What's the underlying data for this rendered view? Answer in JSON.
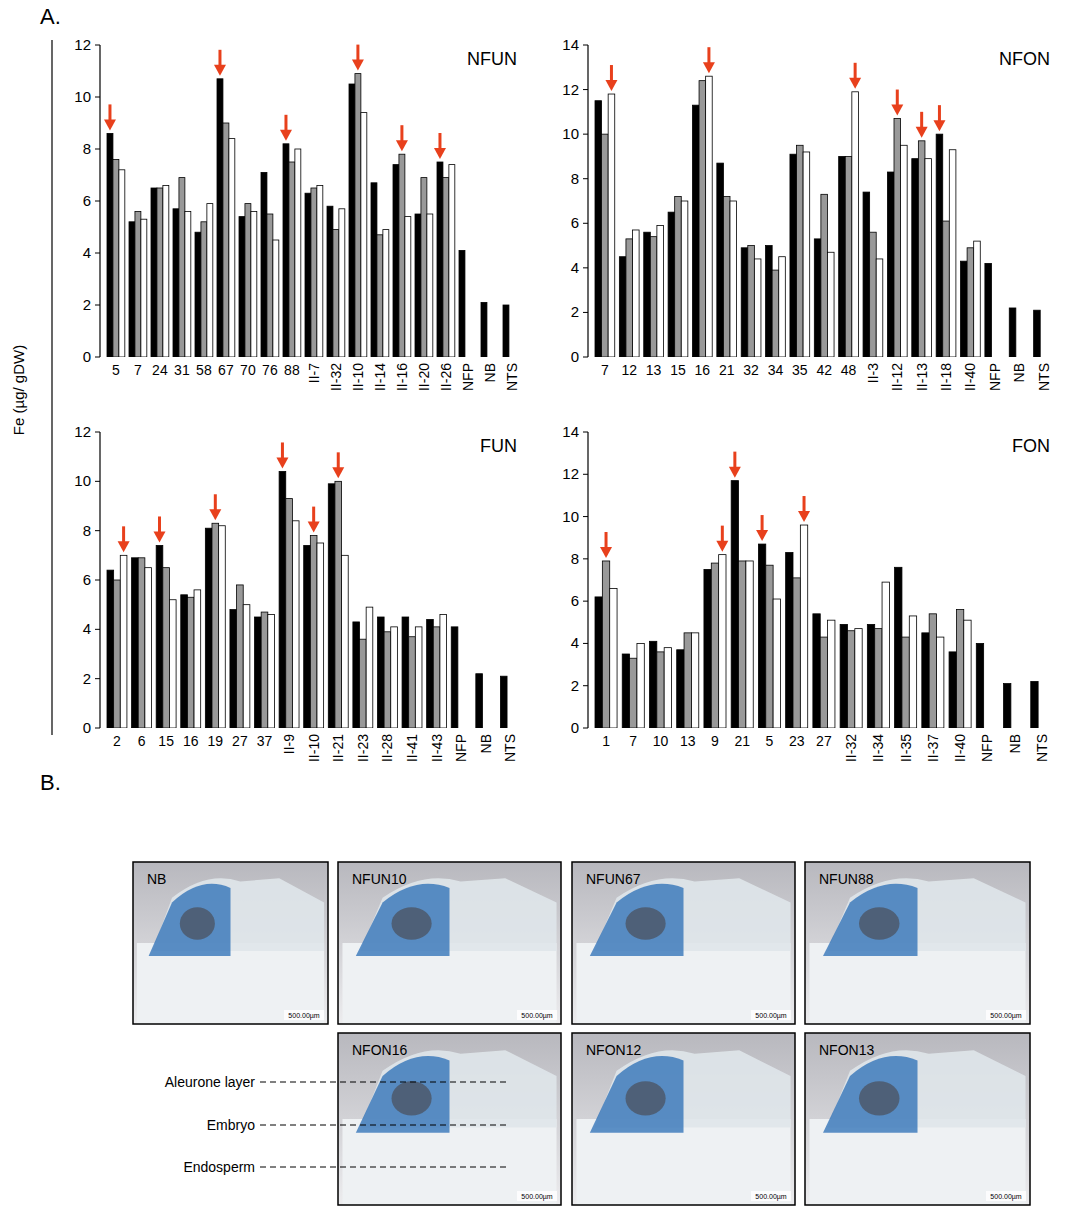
{
  "chart_data": [
    {
      "type": "bar",
      "title": "NFUN",
      "ylim": [
        0,
        12
      ],
      "yticks": [
        0,
        2,
        4,
        6,
        8,
        10,
        12
      ],
      "categories": [
        "5",
        "7",
        "24",
        "31",
        "58",
        "67",
        "70",
        "76",
        "88",
        "II-7",
        "II-32",
        "II-10",
        "II-14",
        "II-16",
        "II-20",
        "II-26",
        "NFP",
        "NB",
        "NTS"
      ],
      "series": [
        {
          "color": "#000000",
          "values": [
            8.6,
            5.2,
            6.5,
            5.7,
            4.8,
            10.7,
            5.4,
            7.1,
            8.2,
            6.3,
            5.8,
            10.5,
            6.7,
            7.4,
            5.5,
            7.5,
            4.1,
            2.1,
            2.0
          ]
        },
        {
          "color": "#999999",
          "values": [
            7.6,
            5.6,
            6.5,
            6.9,
            5.2,
            9.0,
            5.9,
            5.5,
            7.5,
            6.5,
            4.9,
            10.9,
            4.7,
            7.8,
            6.9,
            6.9,
            null,
            null,
            null
          ]
        },
        {
          "color": "#ffffff",
          "values": [
            7.2,
            5.3,
            6.6,
            5.6,
            5.9,
            8.4,
            5.6,
            4.5,
            8.0,
            6.6,
            5.7,
            9.4,
            4.9,
            5.4,
            5.5,
            7.4,
            null,
            null,
            null
          ]
        }
      ],
      "arrows": [
        "5",
        "67",
        "88",
        "II-10",
        "II-16",
        "II-26"
      ]
    },
    {
      "type": "bar",
      "title": "NFON",
      "ylim": [
        0,
        14
      ],
      "yticks": [
        0,
        2,
        4,
        6,
        8,
        10,
        12,
        14
      ],
      "categories": [
        "7",
        "12",
        "13",
        "15",
        "16",
        "21",
        "32",
        "34",
        "35",
        "42",
        "48",
        "II-3",
        "II-12",
        "II-13",
        "II-18",
        "II-40",
        "NFP",
        "NB",
        "NTS"
      ],
      "series": [
        {
          "color": "#000000",
          "values": [
            11.5,
            4.5,
            5.6,
            6.5,
            11.3,
            8.7,
            4.9,
            5.0,
            9.1,
            5.3,
            9.0,
            7.4,
            8.3,
            8.9,
            10.0,
            4.3,
            4.2,
            2.2,
            2.1
          ]
        },
        {
          "color": "#999999",
          "values": [
            10.0,
            5.3,
            5.4,
            7.2,
            12.4,
            7.2,
            5.0,
            3.9,
            9.5,
            7.3,
            9.0,
            5.6,
            10.7,
            9.7,
            6.1,
            4.9,
            null,
            null,
            null
          ]
        },
        {
          "color": "#ffffff",
          "values": [
            11.8,
            5.7,
            5.9,
            7.0,
            12.6,
            7.0,
            4.4,
            4.5,
            9.2,
            4.7,
            11.9,
            4.4,
            9.5,
            8.9,
            9.3,
            5.2,
            null,
            null,
            null
          ]
        }
      ],
      "arrows": [
        "7",
        "16",
        "48",
        "II-12",
        "II-13",
        "II-18"
      ]
    },
    {
      "type": "bar",
      "title": "FUN",
      "ylim": [
        0,
        12
      ],
      "yticks": [
        0,
        2,
        4,
        6,
        8,
        10,
        12
      ],
      "categories": [
        "2",
        "6",
        "15",
        "16",
        "19",
        "27",
        "37",
        "II-9",
        "II-10",
        "II-21",
        "II-23",
        "II-28",
        "II-41",
        "II-43",
        "NFP",
        "NB",
        "NTS"
      ],
      "series": [
        {
          "color": "#000000",
          "values": [
            6.4,
            6.9,
            7.4,
            5.4,
            8.1,
            4.8,
            4.5,
            10.4,
            7.4,
            9.9,
            4.3,
            4.5,
            4.5,
            4.4,
            4.1,
            2.2,
            2.1
          ]
        },
        {
          "color": "#999999",
          "values": [
            6.0,
            6.9,
            6.5,
            5.3,
            8.3,
            5.8,
            4.7,
            9.3,
            7.8,
            10.0,
            3.6,
            3.9,
            3.7,
            4.1,
            null,
            null,
            null
          ]
        },
        {
          "color": "#ffffff",
          "values": [
            7.0,
            6.5,
            5.2,
            5.6,
            8.2,
            5.0,
            4.6,
            8.4,
            7.5,
            7.0,
            4.9,
            4.1,
            4.1,
            4.6,
            null,
            null,
            null
          ]
        }
      ],
      "arrows": [
        "2",
        "15",
        "19",
        "II-9",
        "II-10",
        "II-21"
      ]
    },
    {
      "type": "bar",
      "title": "FON",
      "ylim": [
        0,
        14
      ],
      "yticks": [
        0,
        2,
        4,
        6,
        8,
        10,
        12,
        14
      ],
      "categories": [
        "1",
        "7",
        "10",
        "13",
        "9",
        "21",
        "5",
        "23",
        "27",
        "II-32",
        "II-34",
        "II-35",
        "II-37",
        "II-40",
        "NFP",
        "NB",
        "NTS"
      ],
      "series": [
        {
          "color": "#000000",
          "values": [
            6.2,
            3.5,
            4.1,
            3.7,
            7.5,
            11.7,
            8.7,
            8.3,
            5.4,
            4.9,
            4.9,
            7.6,
            4.5,
            3.6,
            4.0,
            2.1,
            2.2
          ]
        },
        {
          "color": "#999999",
          "values": [
            7.9,
            3.3,
            3.6,
            4.5,
            7.8,
            7.9,
            7.7,
            7.1,
            4.3,
            4.6,
            4.7,
            4.3,
            5.4,
            5.6,
            null,
            null,
            null
          ]
        },
        {
          "color": "#ffffff",
          "values": [
            6.6,
            4.0,
            3.8,
            4.5,
            8.2,
            7.9,
            6.1,
            9.6,
            5.1,
            4.7,
            6.9,
            5.3,
            4.3,
            5.1,
            null,
            null,
            null
          ]
        }
      ],
      "arrows": [
        "1",
        "9",
        "21",
        "5",
        "23"
      ]
    }
  ],
  "figure": {
    "panel_a_label": "A.",
    "y_label": "Fe (µg/ gDW)",
    "panel_b_label": "B."
  },
  "images": {
    "panels": [
      "NB",
      "NFUN10",
      "NFUN67",
      "NFUN88",
      "NFON16",
      "NFON12",
      "NFON13"
    ],
    "annotations": [
      "Aleurone layer",
      "Embryo",
      "Endosperm"
    ],
    "scale_bar": "500.00µm"
  }
}
